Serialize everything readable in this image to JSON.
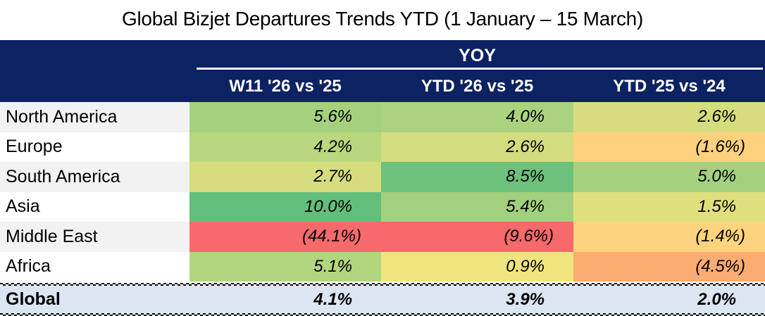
{
  "title": "Global Bizjet Departures Trends YTD (1 January – 15 March)",
  "colors": {
    "header_bg": "#0D2263",
    "header_text": "#FFFFFF",
    "footer_bg": "#DCE6F2",
    "label_alt_bg": "#F2F2F2",
    "scale_green": "#63BE7B",
    "scale_yellow": "#FFEB84",
    "scale_red": "#F8696B"
  },
  "table": {
    "group_header": "YOY",
    "columns": [
      "W11 '26 vs '25",
      "YTD '26 vs '25",
      "YTD '25 vs '24"
    ],
    "rows": [
      {
        "label": "North America",
        "label_bg": "#F2F2F2",
        "values": [
          "5.6%",
          "4.0%",
          "2.6%"
        ],
        "colors": [
          "#A5D17E",
          "#ABD37F",
          "#D6DD7E"
        ]
      },
      {
        "label": "Europe",
        "label_bg": "#FFFFFF",
        "values": [
          "4.2%",
          "2.6%",
          "(1.6%)"
        ],
        "colors": [
          "#B8D77F",
          "#D3DC7E",
          "#FDD17D"
        ]
      },
      {
        "label": "South America",
        "label_bg": "#F2F2F2",
        "values": [
          "2.7%",
          "8.5%",
          "5.0%"
        ],
        "colors": [
          "#D5DD7E",
          "#6EC17C",
          "#A5D17E"
        ]
      },
      {
        "label": "Asia",
        "label_bg": "#FFFFFF",
        "values": [
          "10.0%",
          "5.4%",
          "1.5%"
        ],
        "colors": [
          "#63BE7B",
          "#A3D07E",
          "#E0DF7E"
        ]
      },
      {
        "label": "Middle East",
        "label_bg": "#F2F2F2",
        "values": [
          "(44.1%)",
          "(9.6%)",
          "(1.4%)"
        ],
        "colors": [
          "#F8696B",
          "#F8696B",
          "#FDD47E"
        ]
      },
      {
        "label": "Africa",
        "label_bg": "#FFFFFF",
        "values": [
          "5.1%",
          "0.9%",
          "(4.5%)"
        ],
        "colors": [
          "#B2D580",
          "#F0E47E",
          "#FBAC72"
        ]
      }
    ],
    "footer": {
      "label": "Global",
      "bg": "#DCE6F2",
      "values": [
        "4.1%",
        "3.9%",
        "2.0%"
      ]
    }
  },
  "chart_data": {
    "type": "heatmap",
    "title": "Global Bizjet Departures Trends YTD (1 January – 15 March)",
    "columns": [
      "W11 '26 vs '25",
      "YTD '26 vs '25",
      "YTD '25 vs '24"
    ],
    "rows": [
      "North America",
      "Europe",
      "South America",
      "Asia",
      "Middle East",
      "Africa"
    ],
    "values_pct": [
      [
        5.6,
        4.0,
        2.6
      ],
      [
        4.2,
        2.6,
        -1.6
      ],
      [
        2.7,
        8.5,
        5.0
      ],
      [
        10.0,
        5.4,
        1.5
      ],
      [
        -44.1,
        -9.6,
        -1.4
      ],
      [
        5.1,
        0.9,
        -4.5
      ]
    ],
    "totals_row": {
      "label": "Global",
      "values_pct": [
        4.1,
        3.9,
        2.0
      ]
    },
    "unit": "%",
    "negative_format": "parentheses",
    "color_scale": "red-yellow-green",
    "group_header": "YOY"
  }
}
